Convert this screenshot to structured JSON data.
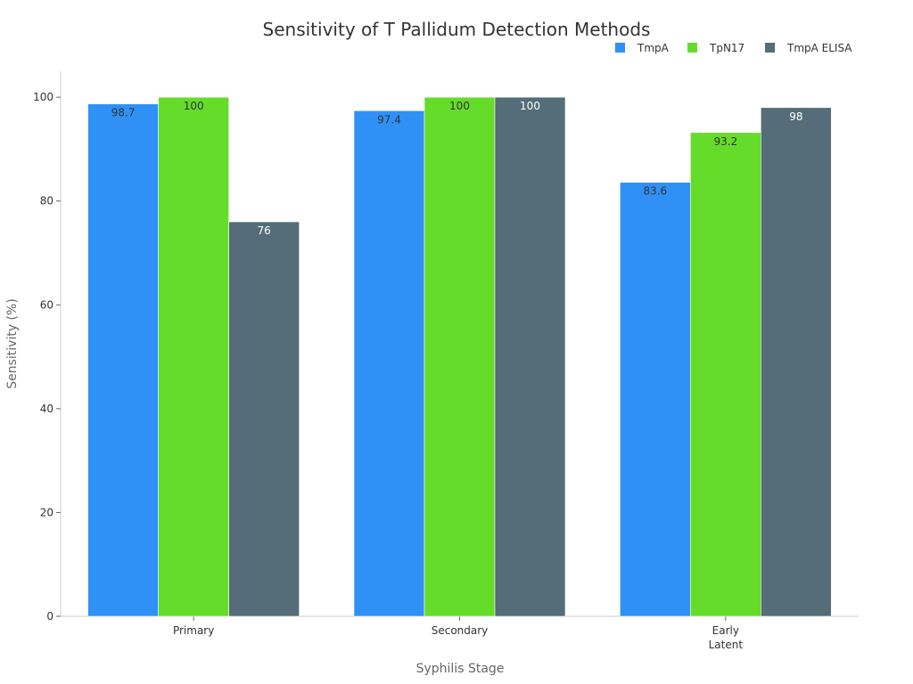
{
  "chart_data": {
    "type": "bar",
    "title": "Sensitivity of T Pallidum Detection Methods",
    "xlabel": "Syphilis Stage",
    "ylabel": "Sensitivity (%)",
    "ylim": [
      0,
      105
    ],
    "yticks": [
      0,
      20,
      40,
      60,
      80,
      100
    ],
    "categories": [
      [
        "Primary"
      ],
      [
        "Secondary"
      ],
      [
        "Early",
        "Latent"
      ]
    ],
    "series": [
      {
        "name": "TmpA",
        "color": "#2f91f6",
        "label_color": "#333333",
        "values": [
          98.7,
          97.4,
          83.6
        ]
      },
      {
        "name": "TpN17",
        "color": "#66dc2a",
        "label_color": "#333333",
        "values": [
          100,
          100,
          93.2
        ]
      },
      {
        "name": "TmpA ELISA",
        "color": "#546d78",
        "label_color": "#ffffff",
        "values": [
          76,
          100,
          98
        ]
      }
    ],
    "legend_position": "top-right",
    "grid": false
  }
}
